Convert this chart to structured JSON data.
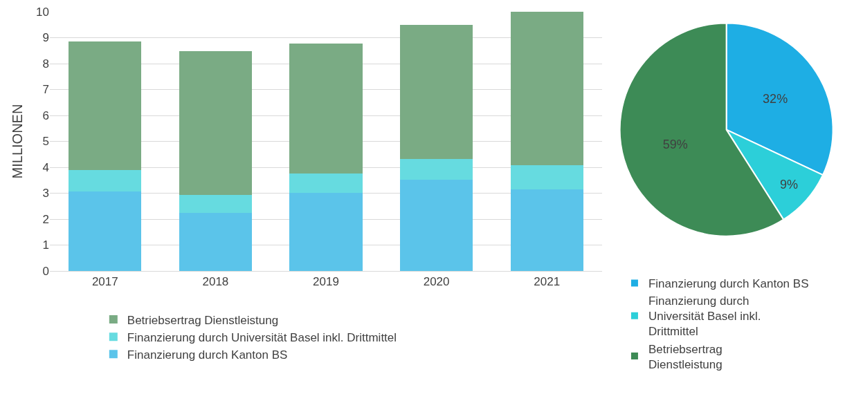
{
  "chart_data": [
    {
      "type": "bar",
      "stacked": true,
      "ylabel": "MILLIONEN",
      "categories": [
        "2017",
        "2018",
        "2019",
        "2020",
        "2021"
      ],
      "ylim": [
        0,
        10
      ],
      "yticks": [
        0,
        1,
        2,
        3,
        4,
        5,
        6,
        7,
        8,
        9,
        10
      ],
      "grid": "y",
      "legend": "bottom",
      "series": [
        {
          "name": "Finanzierung durch Kanton BS",
          "color": "#5bc4ea",
          "values": [
            3.07,
            2.25,
            3.02,
            3.52,
            3.15
          ]
        },
        {
          "name": "Finanzierung durch Universität Basel inkl. Drittmittel",
          "color": "#66dbe0",
          "values": [
            0.82,
            0.69,
            0.74,
            0.79,
            0.92
          ]
        },
        {
          "name": "Betriebsertrag Dienstleistung",
          "color": "#7aab84",
          "values": [
            4.97,
            5.55,
            5.02,
            5.19,
            5.93
          ]
        }
      ]
    },
    {
      "type": "pie",
      "legend": "bottom",
      "categories": [
        "Finanzierung durch Kanton BS",
        "Finanzierung durch Universität Basel inkl. Drittmittel",
        "Betriebsertrag Dienstleistung"
      ],
      "values": [
        32,
        9,
        59
      ],
      "value_labels": [
        "32%",
        "9%",
        "59%"
      ],
      "colors": [
        "#1eaee4",
        "#2ccfd9",
        "#3d8b56"
      ]
    }
  ]
}
